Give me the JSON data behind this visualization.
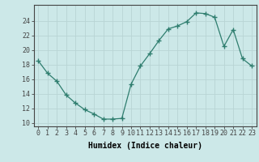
{
  "x": [
    0,
    1,
    2,
    3,
    4,
    5,
    6,
    7,
    8,
    9,
    10,
    11,
    12,
    13,
    14,
    15,
    16,
    17,
    18,
    19,
    20,
    21,
    22,
    23
  ],
  "y": [
    18.5,
    16.8,
    15.7,
    13.8,
    12.7,
    11.8,
    11.2,
    10.5,
    10.5,
    10.6,
    15.3,
    17.8,
    19.5,
    21.3,
    22.9,
    23.3,
    23.9,
    25.1,
    25.0,
    24.5,
    20.5,
    22.8,
    18.8,
    17.8
  ],
  "line_color": "#2e7d6e",
  "marker": "+",
  "marker_size": 4,
  "bg_color": "#cce8e8",
  "grid_color": "#b8d4d4",
  "axis_color": "#444444",
  "xlabel": "Humidex (Indice chaleur)",
  "xlim": [
    -0.5,
    23.5
  ],
  "ylim": [
    9.5,
    26.2
  ],
  "yticks": [
    10,
    12,
    14,
    16,
    18,
    20,
    22,
    24
  ],
  "xticks": [
    0,
    1,
    2,
    3,
    4,
    5,
    6,
    7,
    8,
    9,
    10,
    11,
    12,
    13,
    14,
    15,
    16,
    17,
    18,
    19,
    20,
    21,
    22,
    23
  ],
  "xtick_labels": [
    "0",
    "1",
    "2",
    "3",
    "4",
    "5",
    "6",
    "7",
    "8",
    "9",
    "10",
    "11",
    "12",
    "13",
    "14",
    "15",
    "16",
    "17",
    "18",
    "19",
    "20",
    "21",
    "22",
    "23"
  ],
  "label_fontsize": 7,
  "tick_fontsize": 6
}
